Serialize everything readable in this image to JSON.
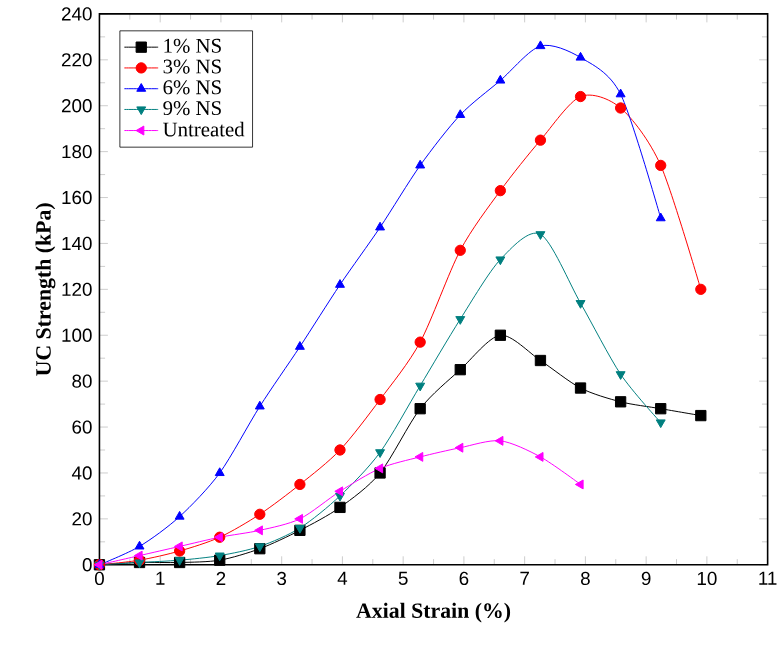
{
  "chart_data": {
    "type": "line",
    "xlabel": "Axial Strain (%)",
    "ylabel": "UC Strength (kPa)",
    "x": [
      0,
      0.66,
      1.32,
      1.98,
      2.64,
      3.3,
      3.96,
      4.62,
      5.28,
      5.94,
      6.6,
      7.26,
      7.92,
      8.58,
      9.24,
      9.9
    ],
    "series": [
      {
        "name": "1% NS",
        "color": "#000000",
        "marker": "square",
        "values": [
          0,
          1,
          1,
          2,
          7,
          15,
          25,
          40,
          68,
          85,
          100,
          89,
          77,
          71,
          68,
          65
        ]
      },
      {
        "name": "3% NS",
        "color": "#ff0000",
        "marker": "circle",
        "values": [
          0,
          2,
          6,
          12,
          22,
          35,
          50,
          72,
          97,
          137,
          163,
          185,
          204,
          199,
          174,
          120
        ]
      },
      {
        "name": "6% NS",
        "color": "#0000ff",
        "marker": "triangle",
        "values": [
          0,
          8,
          21,
          40,
          69,
          95,
          122,
          147,
          174,
          196,
          211,
          226,
          221,
          205,
          151,
          null
        ]
      },
      {
        "name": "9% NS",
        "color": "#007f7f",
        "marker": "triangle-down",
        "values": [
          0,
          1,
          2,
          4,
          8,
          16,
          30,
          49,
          78,
          107,
          133,
          144,
          114,
          83,
          62,
          null
        ]
      },
      {
        "name": "Untreated",
        "color": "#ff00ff",
        "marker": "triangle-left",
        "values": [
          0,
          4,
          8,
          12,
          15,
          20,
          32,
          42,
          47,
          51,
          54,
          47,
          35,
          null,
          null,
          null
        ]
      }
    ],
    "xlim": [
      0,
      11
    ],
    "xticks": [
      0,
      1,
      2,
      3,
      4,
      5,
      6,
      7,
      8,
      9,
      10,
      11
    ],
    "ylim": [
      0,
      240
    ],
    "yticks": [
      0,
      20,
      40,
      60,
      80,
      100,
      120,
      140,
      160,
      180,
      200,
      220,
      240
    ],
    "legend": "top left",
    "grid": false
  }
}
